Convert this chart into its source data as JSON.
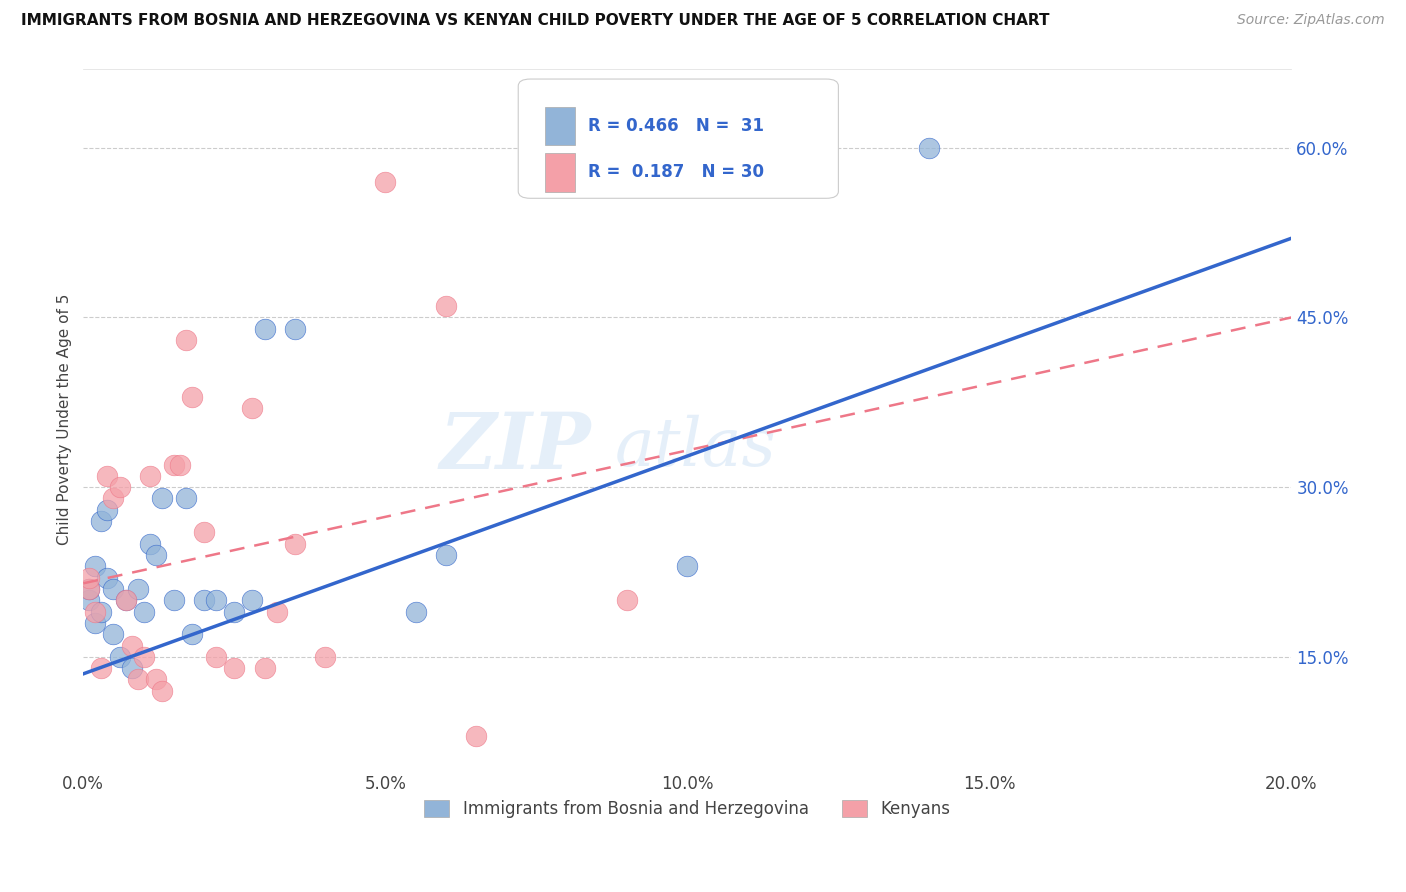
{
  "title": "IMMIGRANTS FROM BOSNIA AND HERZEGOVINA VS KENYAN CHILD POVERTY UNDER THE AGE OF 5 CORRELATION CHART",
  "source": "Source: ZipAtlas.com",
  "ylabel": "Child Poverty Under the Age of 5",
  "xlim": [
    0.0,
    0.2
  ],
  "ylim": [
    0.05,
    0.67
  ],
  "xticks": [
    0.0,
    0.05,
    0.1,
    0.15,
    0.2
  ],
  "xticklabels": [
    "0.0%",
    "5.0%",
    "10.0%",
    "15.0%",
    "20.0%"
  ],
  "yticks_right": [
    0.15,
    0.3,
    0.45,
    0.6
  ],
  "ytick_right_labels": [
    "15.0%",
    "30.0%",
    "45.0%",
    "60.0%"
  ],
  "watermark_zip": "ZIP",
  "watermark_atlas": "atlas",
  "legend_R1": "0.466",
  "legend_N1": "31",
  "legend_R2": "0.187",
  "legend_N2": "30",
  "legend_label1": "Immigrants from Bosnia and Herzegovina",
  "legend_label2": "Kenyans",
  "blue_color": "#92B4D8",
  "pink_color": "#F4A0A8",
  "line_blue": "#3366CC",
  "line_pink": "#EE7788",
  "blue_x": [
    0.001,
    0.001,
    0.002,
    0.002,
    0.003,
    0.003,
    0.004,
    0.004,
    0.005,
    0.005,
    0.006,
    0.007,
    0.008,
    0.009,
    0.01,
    0.011,
    0.012,
    0.013,
    0.015,
    0.017,
    0.018,
    0.02,
    0.022,
    0.025,
    0.028,
    0.03,
    0.035,
    0.055,
    0.06,
    0.1,
    0.14
  ],
  "blue_y": [
    0.2,
    0.21,
    0.18,
    0.23,
    0.19,
    0.27,
    0.22,
    0.28,
    0.17,
    0.21,
    0.15,
    0.2,
    0.14,
    0.21,
    0.19,
    0.25,
    0.24,
    0.29,
    0.2,
    0.29,
    0.17,
    0.2,
    0.2,
    0.19,
    0.2,
    0.44,
    0.44,
    0.19,
    0.24,
    0.23,
    0.6
  ],
  "pink_x": [
    0.001,
    0.001,
    0.002,
    0.003,
    0.004,
    0.005,
    0.006,
    0.007,
    0.008,
    0.009,
    0.01,
    0.011,
    0.012,
    0.013,
    0.015,
    0.016,
    0.017,
    0.018,
    0.02,
    0.022,
    0.025,
    0.028,
    0.03,
    0.032,
    0.035,
    0.04,
    0.05,
    0.06,
    0.065,
    0.09
  ],
  "pink_y": [
    0.21,
    0.22,
    0.19,
    0.14,
    0.31,
    0.29,
    0.3,
    0.2,
    0.16,
    0.13,
    0.15,
    0.31,
    0.13,
    0.12,
    0.32,
    0.32,
    0.43,
    0.38,
    0.26,
    0.15,
    0.14,
    0.37,
    0.14,
    0.19,
    0.25,
    0.15,
    0.57,
    0.46,
    0.08,
    0.2
  ],
  "background_color": "#ffffff",
  "grid_color": "#cccccc",
  "blue_line_x0": 0.0,
  "blue_line_y0": 0.135,
  "blue_line_x1": 0.2,
  "blue_line_y1": 0.52,
  "pink_line_x0": 0.0,
  "pink_line_y0": 0.215,
  "pink_line_x1": 0.2,
  "pink_line_y1": 0.45
}
